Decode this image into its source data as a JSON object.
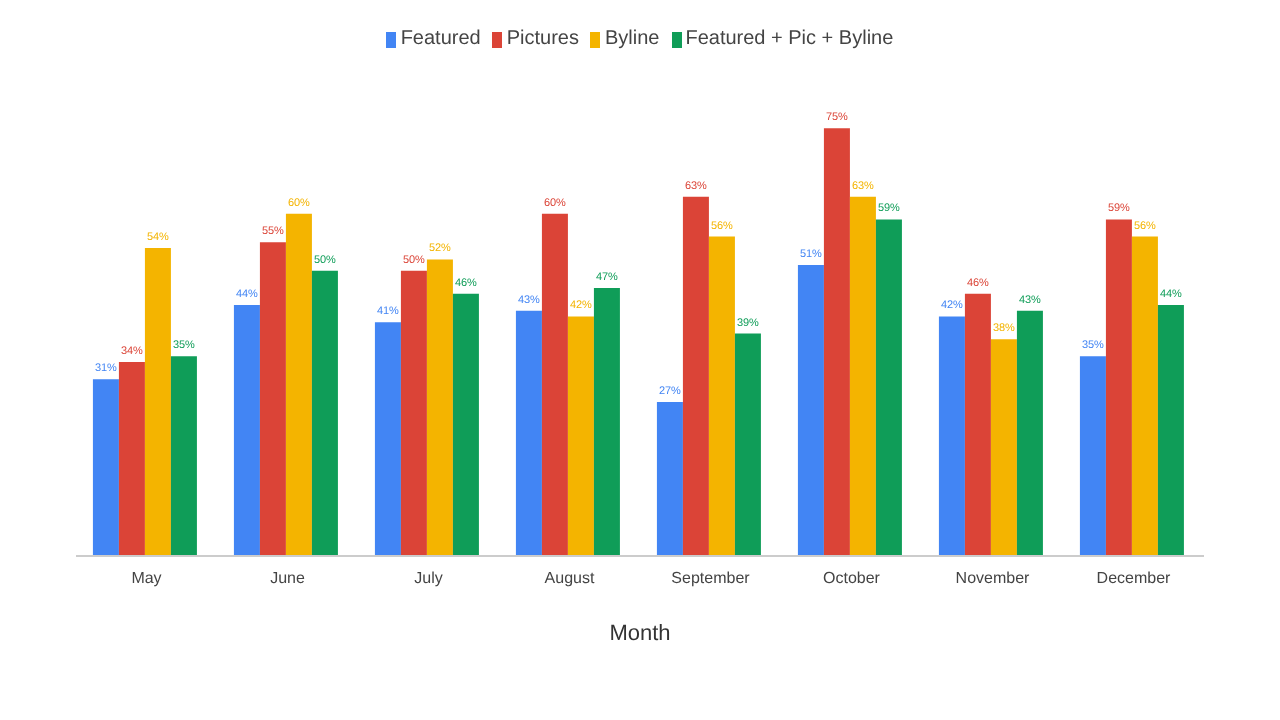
{
  "chart_data": {
    "type": "bar",
    "xlabel": "Month",
    "categories": [
      "May",
      "June",
      "July",
      "August",
      "September",
      "October",
      "November",
      "December"
    ],
    "legend": "top",
    "series": [
      {
        "name": "Featured",
        "color": "#4285f4",
        "values": [
          31,
          44,
          41,
          43,
          27,
          51,
          42,
          35
        ],
        "value_labels": [
          "31%",
          "44%",
          "41%",
          "43%",
          "27%",
          "51%",
          "42%",
          "35%"
        ]
      },
      {
        "name": "Pictures",
        "color": "#db4437",
        "values": [
          34,
          55,
          50,
          60,
          63,
          75,
          46,
          59
        ],
        "value_labels": [
          "34%",
          "55%",
          "50%",
          "60%",
          "63%",
          "75%",
          "46%",
          "59%"
        ]
      },
      {
        "name": "Byline",
        "color": "#f4b400",
        "values": [
          54,
          60,
          52,
          42,
          56,
          63,
          38,
          56
        ],
        "value_labels": [
          "54%",
          "60%",
          "52%",
          "42%",
          "56%",
          "63%",
          "38%",
          "56%"
        ]
      },
      {
        "name": "Featured + Pic + Byline",
        "color": "#0f9d58",
        "values": [
          35,
          50,
          46,
          47,
          39,
          59,
          43,
          44
        ],
        "value_labels": [
          "35%",
          "50%",
          "46%",
          "47%",
          "39%",
          "59%",
          "43%",
          "44%"
        ]
      }
    ]
  }
}
